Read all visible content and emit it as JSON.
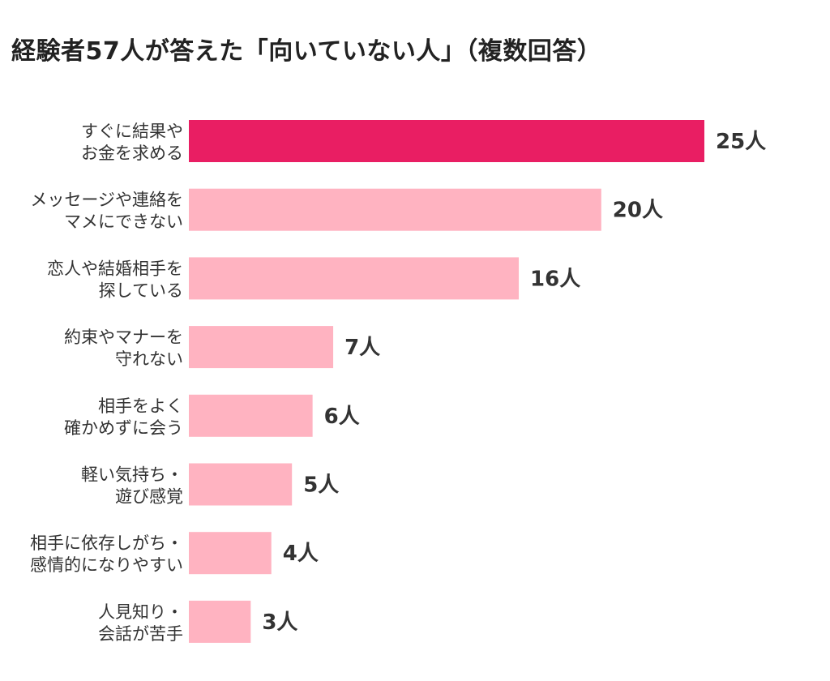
{
  "chart_data": {
    "type": "bar",
    "orientation": "horizontal",
    "title": "経験者57人が答えた「向いていない人」（複数回答）",
    "xlabel": "",
    "ylabel": "",
    "xlim": [
      0,
      25
    ],
    "grid": false,
    "categories": [
      [
        "すぐに結果や",
        "お金を求める"
      ],
      [
        "メッセージや連絡を",
        "マメにできない"
      ],
      [
        "恋人や結婚相手を",
        "探している"
      ],
      [
        "約束やマナーを",
        "守れない"
      ],
      [
        "相手をよく",
        "確かめずに会う"
      ],
      [
        "軽い気持ち・",
        "遊び感覚"
      ],
      [
        "相手に依存しがち・",
        "感情的になりやすい"
      ],
      [
        "人見知り・",
        "会話が苦手"
      ]
    ],
    "values": [
      25,
      20,
      16,
      7,
      6,
      5,
      4,
      3
    ],
    "value_labels": [
      "25人",
      "20人",
      "16人",
      "7人",
      "6人",
      "5人",
      "4人",
      "3人"
    ],
    "colors": {
      "highlight": "#e91e63",
      "bar": "#ffb3c1",
      "text": "#333333"
    }
  }
}
